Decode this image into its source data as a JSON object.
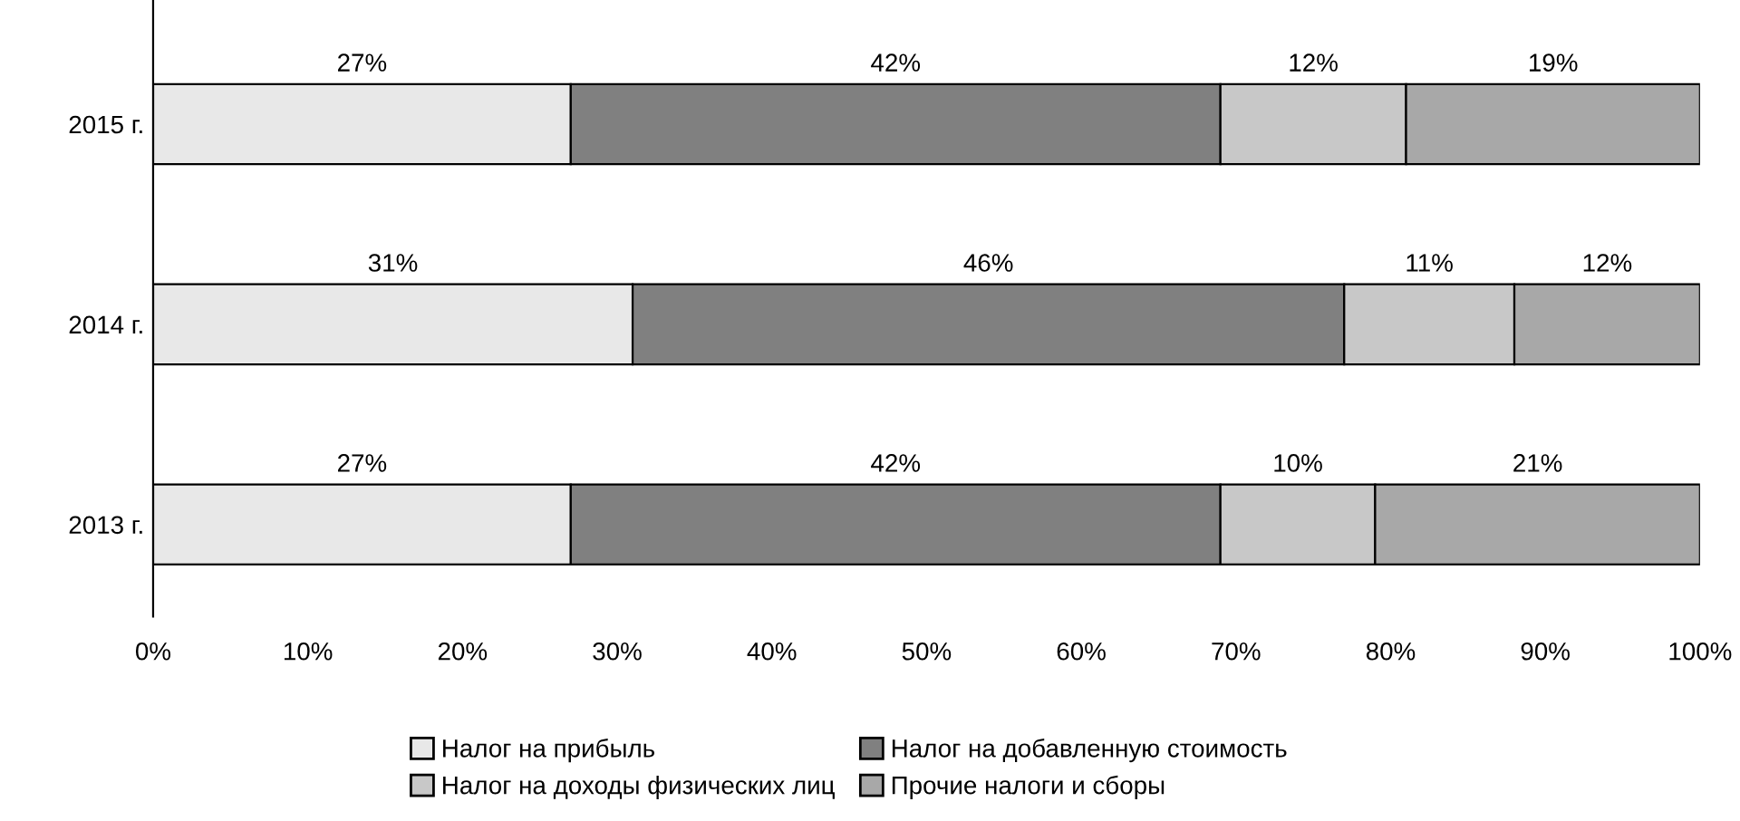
{
  "chart_data": {
    "type": "bar",
    "orientation": "horizontal",
    "stacked": true,
    "categories": [
      "2015 г.",
      "2014 г.",
      "2013 г."
    ],
    "series": [
      {
        "name": "Налог на прибыль",
        "color": "#e8e8e8",
        "values": [
          27,
          31,
          27
        ],
        "value_labels": [
          "27%",
          "31%",
          "27%"
        ]
      },
      {
        "name": "Налог на добавленную стоимость",
        "color": "#808080",
        "values": [
          42,
          46,
          42
        ],
        "value_labels": [
          "42%",
          "46%",
          "42%"
        ]
      },
      {
        "name": "Налог на доходы физических лиц",
        "color": "#c8c8c8",
        "values": [
          12,
          11,
          10
        ],
        "value_labels": [
          "12%",
          "11%",
          "10%"
        ]
      },
      {
        "name": "Прочие налоги и сборы",
        "color": "#a8a8a8",
        "values": [
          19,
          12,
          21
        ],
        "value_labels": [
          "19%",
          "12%",
          "21%"
        ]
      }
    ],
    "xlim": [
      0,
      100
    ],
    "xticks": [
      {
        "value": 0,
        "label": "0%"
      },
      {
        "value": 10,
        "label": "10%"
      },
      {
        "value": 20,
        "label": "20%"
      },
      {
        "value": 30,
        "label": "30%"
      },
      {
        "value": 40,
        "label": "40%"
      },
      {
        "value": 50,
        "label": "50%"
      },
      {
        "value": 60,
        "label": "60%"
      },
      {
        "value": 70,
        "label": "70%"
      },
      {
        "value": 80,
        "label": "80%"
      },
      {
        "value": 90,
        "label": "90%"
      },
      {
        "value": 100,
        "label": "100%"
      }
    ],
    "grid": false,
    "legend": "bottom"
  }
}
